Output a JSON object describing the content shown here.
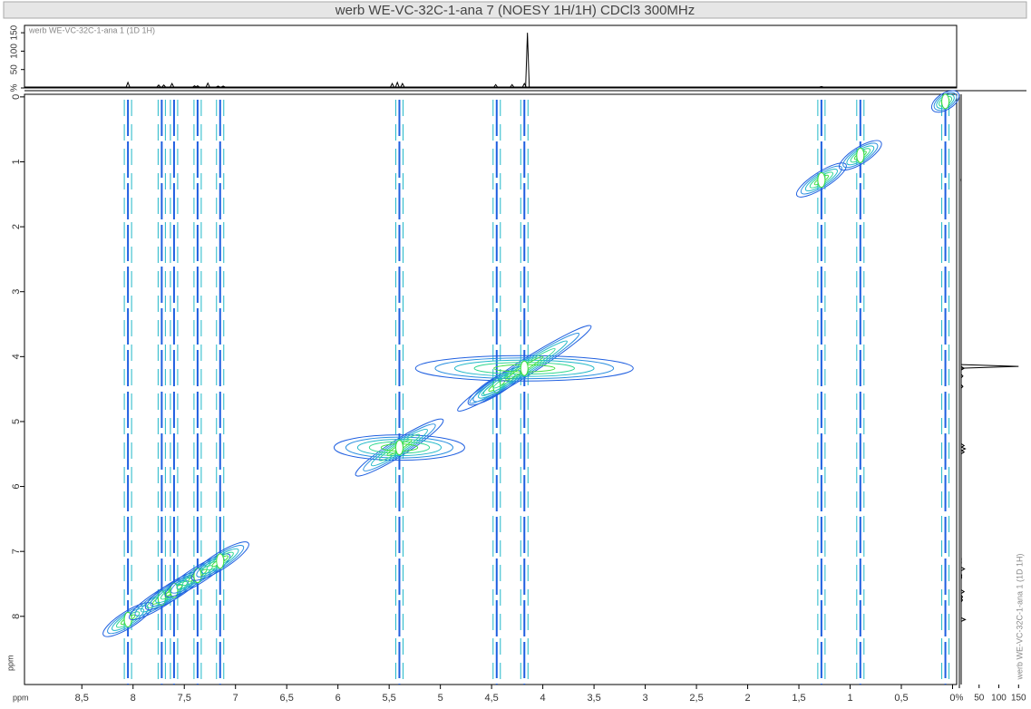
{
  "chart_data": {
    "type": "contour2d",
    "title": "werb WE-VC-32C-1-ana 7 (NOESY 1H/1H) CDCl3 300MHz",
    "spectrum_label": "werb WE-VC-32C-1-ana 1 (1D 1H)",
    "x_axis_label": "ppm",
    "y_axis_label": "ppm",
    "xlim": [
      9.06,
      -0.04
    ],
    "xticks": [
      {
        "value": 8.5,
        "label": "8,5"
      },
      8,
      {
        "value": 7.5,
        "label": "7,5"
      },
      7,
      {
        "value": 6.5,
        "label": "6,5"
      },
      6,
      {
        "value": 5.5,
        "label": "5,5"
      },
      5,
      {
        "value": 4.5,
        "label": "4,5"
      },
      4,
      {
        "value": 3.5,
        "label": "3,5"
      },
      3,
      {
        "value": 2.5,
        "label": "2,5"
      },
      2,
      {
        "value": 1.5,
        "label": "1,5"
      },
      1,
      {
        "value": 0.5,
        "label": "0,5"
      },
      0
    ],
    "ylim": [
      -0.04,
      9.05
    ],
    "yticks": [
      0,
      1,
      2,
      3,
      4,
      5,
      6,
      7,
      8
    ],
    "projection_lim": [
      0,
      170
    ],
    "projection_ticks": [
      {
        "value": 0,
        "label": "%"
      },
      50,
      100,
      150
    ],
    "contour_colors": [
      "#1f5fe0",
      "#2a8fe0",
      "#20b8c8",
      "#30d890",
      "#40e040"
    ],
    "spectrum_1d": {
      "x": [
        8.05,
        7.75,
        7.7,
        7.62,
        7.4,
        7.37,
        7.27,
        7.17,
        7.12,
        5.47,
        5.42,
        5.37,
        4.46,
        4.3,
        4.18,
        4.15,
        1.28
      ],
      "values": [
        15,
        8,
        8,
        12,
        6,
        6,
        13,
        5,
        5,
        12,
        15,
        12,
        9,
        9,
        12,
        150,
        4
      ]
    },
    "peaks_2d": {
      "x": [
        8.05,
        7.72,
        7.6,
        7.37,
        7.15,
        5.4,
        4.45,
        4.18,
        1.28,
        0.9,
        0.07
      ],
      "y": [
        8.05,
        7.72,
        7.6,
        7.37,
        7.15,
        5.4,
        4.45,
        4.18,
        1.28,
        0.9,
        0.07
      ],
      "values": [
        40,
        60,
        50,
        60,
        50,
        90,
        50,
        150,
        40,
        30,
        10
      ]
    }
  }
}
